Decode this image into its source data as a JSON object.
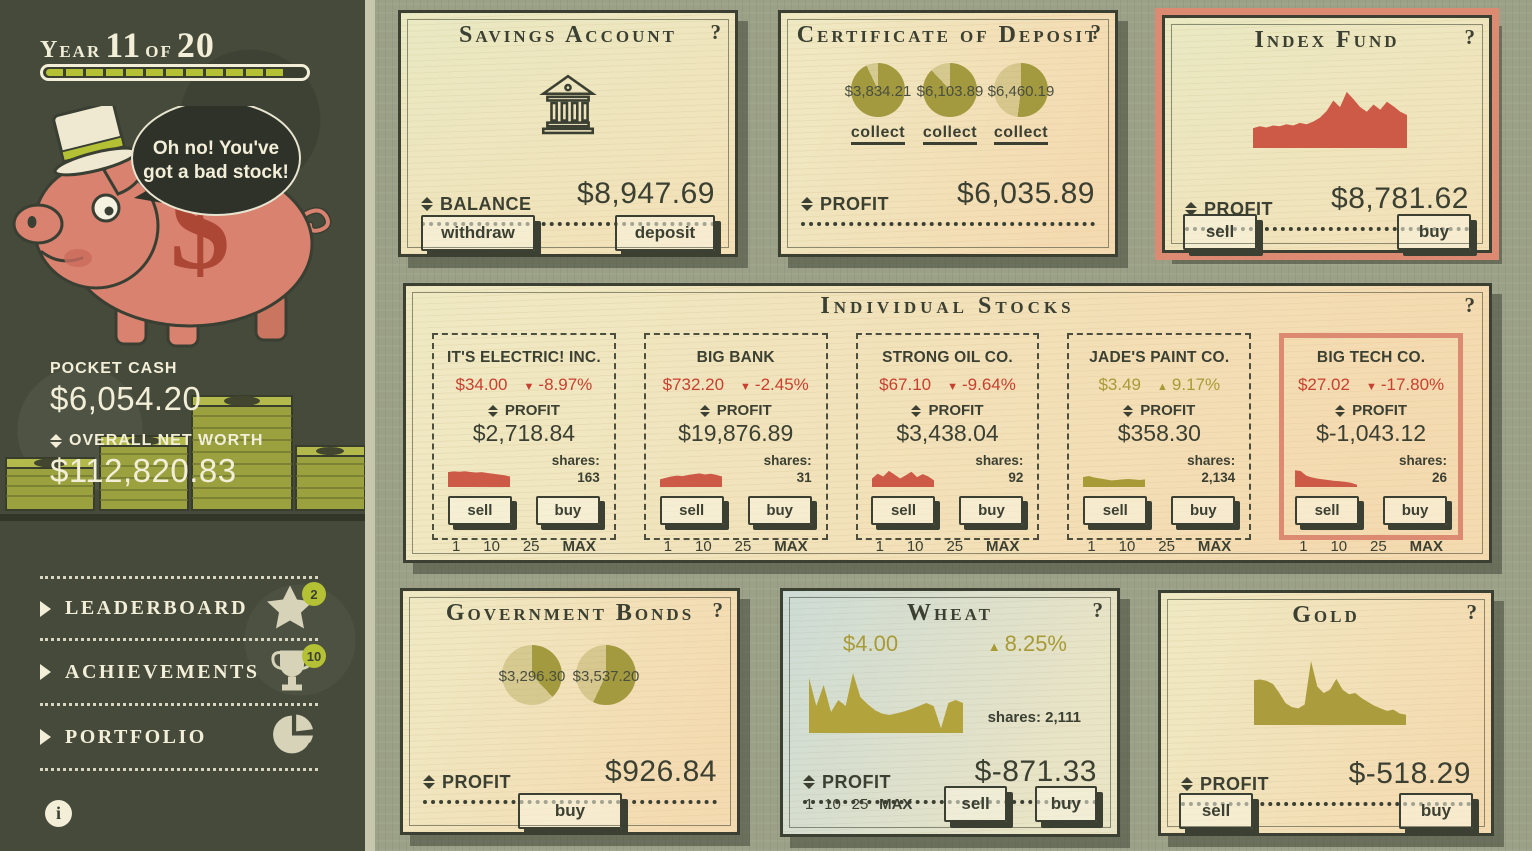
{
  "colors": {
    "dark": "#3b4032",
    "cream": "#f2eed8",
    "accent_green": "#b5c134",
    "salmon_highlight": "#dc8a72",
    "red": "#c74130",
    "olive": "#a89b37",
    "pie_fill": "#a39a40",
    "pie_empty": "rgba(163,154,64,0.35)"
  },
  "controls": {
    "withdraw": "withdraw",
    "deposit": "deposit",
    "sell": "sell",
    "buy": "buy",
    "collect": "collect",
    "help": "?",
    "info": "i",
    "quantities": [
      "1",
      "10",
      "25",
      "MAX"
    ]
  },
  "labels": {
    "balance": "BALANCE",
    "profit": "PROFIT",
    "shares": "shares:"
  },
  "sidebar": {
    "year": {
      "word_year": "Year",
      "current": "11",
      "word_of": "of",
      "total": "20"
    },
    "progress_percent": 93,
    "speech_bubble": {
      "line1": "Oh no! You've",
      "line2": "got a bad stock!"
    },
    "pocket_cash_label": "POCKET CASH",
    "pocket_cash_value": "$6,054.20",
    "net_worth_label": "OVERALL NET WORTH",
    "net_worth_value": "$112,820.83",
    "menu": [
      {
        "label": "LEADERBOARD",
        "icon": "star",
        "badge": "2"
      },
      {
        "label": "ACHIEVEMENTS",
        "icon": "trophy",
        "badge": "10"
      },
      {
        "label": "PORTFOLIO",
        "icon": "pie-chart"
      }
    ]
  },
  "cards": {
    "savings": {
      "title": "Savings Account",
      "balance_value": "$8,947.69"
    },
    "cd": {
      "title": "Certificate of Deposit",
      "profit_value": "$6,035.89",
      "deposits": [
        {
          "value": "$3,834.21",
          "fill": 0.93
        },
        {
          "value": "$6,103.89",
          "fill": 0.88
        },
        {
          "value": "$6,460.19",
          "fill": 0.52
        }
      ]
    },
    "index_fund": {
      "title": "Index Fund",
      "profit_value": "$8,781.62",
      "highlighted": true
    },
    "stocks_panel": {
      "title": "Individual Stocks",
      "stocks": [
        {
          "name": "IT'S ELECTRIC! INC.",
          "price": "$34.00",
          "change": "-8.97%",
          "direction": "down",
          "profit_value": "$2,718.84",
          "shares": "163"
        },
        {
          "name": "BIG BANK",
          "price": "$732.20",
          "change": "-2.45%",
          "direction": "down",
          "profit_value": "$19,876.89",
          "shares": "31"
        },
        {
          "name": "STRONG OIL CO.",
          "price": "$67.10",
          "change": "-9.64%",
          "direction": "down",
          "profit_value": "$3,438.04",
          "shares": "92"
        },
        {
          "name": "JADE'S PAINT CO.",
          "price": "$3.49",
          "change": "9.17%",
          "direction": "up",
          "profit_value": "$358.30",
          "shares": "2,134"
        },
        {
          "name": "BIG TECH CO.",
          "price": "$27.02",
          "change": "-17.80%",
          "direction": "down",
          "profit_value": "$-1,043.12",
          "shares": "26",
          "highlighted": true
        }
      ]
    },
    "bonds": {
      "title": "Government Bonds",
      "profit_value": "$926.84",
      "deposits": [
        {
          "value": "$3,296.30",
          "fill": 0.38
        },
        {
          "value": "$3,537.20",
          "fill": 0.57
        }
      ]
    },
    "wheat": {
      "title": "Wheat",
      "price": "$4.00",
      "change": "8.25%",
      "direction": "up",
      "shares_text": "shares: 2,111",
      "profit_value": "$-871.33"
    },
    "gold": {
      "title": "Gold",
      "profit_value": "$-518.29"
    }
  },
  "chart_data": [
    {
      "id": "index_fund",
      "type": "area",
      "color": "#cd5a47",
      "title": "Index Fund price history",
      "values": [
        0.3,
        0.33,
        0.31,
        0.34,
        0.33,
        0.36,
        0.34,
        0.38,
        0.36,
        0.4,
        0.46,
        0.56,
        0.72,
        0.62,
        0.85,
        0.74,
        0.62,
        0.55,
        0.66,
        0.58,
        0.7,
        0.63,
        0.55,
        0.5
      ]
    },
    {
      "id": "wheat",
      "type": "area",
      "color": "#b3a33c",
      "title": "Wheat price history",
      "values": [
        0.92,
        0.45,
        0.8,
        0.35,
        0.55,
        0.45,
        1.0,
        0.6,
        0.48,
        0.38,
        0.32,
        0.3,
        0.33,
        0.36,
        0.4,
        0.45,
        0.5,
        0.45,
        0.08,
        0.5,
        0.55,
        0.5
      ]
    },
    {
      "id": "gold",
      "type": "area",
      "color": "#ab9d3d",
      "title": "Gold price history",
      "values": [
        0.7,
        0.71,
        0.69,
        0.64,
        0.5,
        0.34,
        0.28,
        0.26,
        0.32,
        1.0,
        0.6,
        0.5,
        0.55,
        0.72,
        0.55,
        0.48,
        0.5,
        0.42,
        0.36,
        0.3,
        0.26,
        0.22,
        0.24,
        0.18,
        0.16
      ]
    },
    {
      "id": "spark_electric",
      "type": "area",
      "color": "#cd5a47",
      "values": [
        0.78,
        0.82,
        0.8,
        0.83,
        0.79,
        0.76,
        0.78,
        0.74,
        0.7,
        0.66,
        0.62,
        0.55
      ]
    },
    {
      "id": "spark_bigbank",
      "type": "area",
      "color": "#cd5a47",
      "values": [
        0.4,
        0.48,
        0.55,
        0.6,
        0.57,
        0.63,
        0.68,
        0.72,
        0.66,
        0.7,
        0.64,
        0.55
      ]
    },
    {
      "id": "spark_strongoil",
      "type": "area",
      "color": "#cd5a47",
      "values": [
        0.45,
        0.7,
        0.55,
        0.85,
        0.65,
        0.45,
        0.62,
        0.8,
        0.52,
        0.68,
        0.55,
        0.35
      ]
    },
    {
      "id": "spark_jade",
      "type": "area",
      "color": "#a89b37",
      "values": [
        0.52,
        0.58,
        0.5,
        0.45,
        0.4,
        0.35,
        0.37,
        0.4,
        0.42,
        0.4,
        0.37,
        0.4
      ]
    },
    {
      "id": "spark_bigtech",
      "type": "area",
      "color": "#cd5a47",
      "values": [
        0.88,
        0.84,
        0.6,
        0.5,
        0.44,
        0.4,
        0.36,
        0.32,
        0.3,
        0.27,
        0.22,
        0.12
      ]
    }
  ]
}
